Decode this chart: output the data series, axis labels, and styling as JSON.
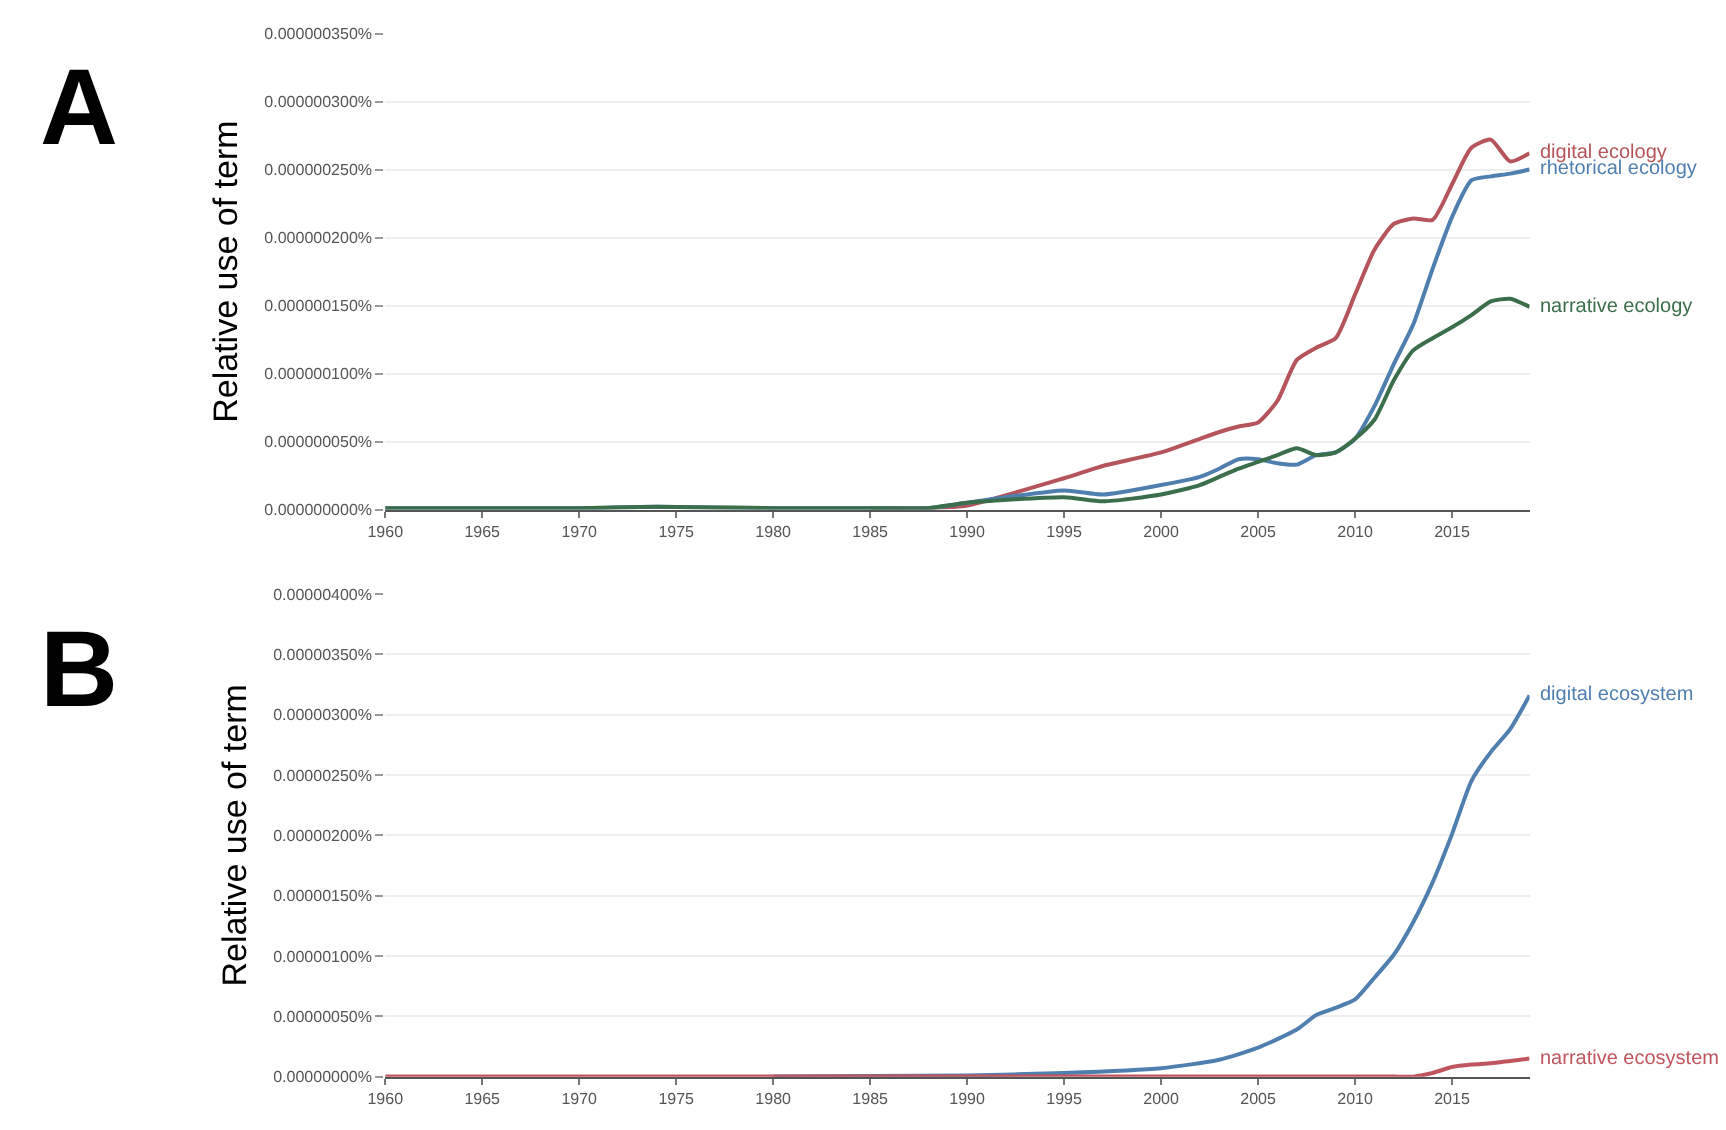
{
  "chart_data": [
    {
      "type": "line",
      "title": "A",
      "ylabel": "Relative use of term",
      "x": [
        1960,
        1965,
        1970,
        1974,
        1980,
        1985,
        1988,
        1990,
        1995,
        1997,
        2000,
        2002,
        2003,
        2004,
        2005,
        2006,
        2007,
        2008,
        2009,
        2010,
        2011,
        2012,
        2013,
        2014,
        2015,
        2016,
        2017,
        2018,
        2019
      ],
      "series": [
        {
          "name": "digital ecology",
          "color": "#b5545a",
          "values": [
            null,
            null,
            null,
            null,
            null,
            1e-09,
            1e-09,
            3e-09,
            2.3e-08,
            3.2e-08,
            4.2e-08,
            5.2e-08,
            5.7e-08,
            6.1e-08,
            6.4e-08,
            8e-08,
            1.1e-07,
            1.19e-07,
            1.26e-07,
            1.58e-07,
            1.91e-07,
            2.1e-07,
            2.14e-07,
            2.13e-07,
            2.39e-07,
            2.66e-07,
            2.72e-07,
            2.56e-07,
            2.62e-07
          ]
        },
        {
          "name": "rhetorical ecology",
          "color": "#4f7faf",
          "values": [
            1e-09,
            1e-09,
            1e-09,
            2e-09,
            1e-09,
            1e-09,
            1e-09,
            5e-09,
            1.4e-08,
            1.1e-08,
            1.8e-08,
            2.4e-08,
            3e-08,
            3.7e-08,
            3.7e-08,
            3.4e-08,
            3.3e-08,
            4e-08,
            4.2e-08,
            5.2e-08,
            7.6e-08,
            1.07e-07,
            1.36e-07,
            1.77e-07,
            2.15e-07,
            2.42e-07,
            2.45e-07,
            2.47e-07,
            2.5e-07
          ]
        },
        {
          "name": "narrative ecology",
          "color": "#3b6e4a",
          "values": [
            1e-09,
            1e-09,
            1e-09,
            2e-09,
            1e-09,
            1e-09,
            1e-09,
            5e-09,
            9e-09,
            6e-09,
            1.1e-08,
            1.8e-08,
            2.4e-08,
            3e-08,
            3.5e-08,
            4e-08,
            4.5e-08,
            4e-08,
            4.2e-08,
            5.2e-08,
            6.6e-08,
            9.5e-08,
            1.17e-07,
            1.26e-07,
            1.34e-07,
            1.43e-07,
            1.53e-07,
            1.55e-07,
            1.49e-07
          ]
        }
      ],
      "xlim": [
        1960,
        2019
      ],
      "xticks": [
        1960,
        1965,
        1970,
        1975,
        1980,
        1985,
        1990,
        1995,
        2000,
        2005,
        2010,
        2015
      ],
      "ylim": [
        0,
        3.5e-07
      ],
      "yticks": [
        {
          "value": 0,
          "label": "0.000000000%"
        },
        {
          "value": 5e-08,
          "label": "0.000000050%"
        },
        {
          "value": 1e-07,
          "label": "0.000000100%"
        },
        {
          "value": 1.5e-07,
          "label": "0.000000150%"
        },
        {
          "value": 2e-07,
          "label": "0.000000200%"
        },
        {
          "value": 2.5e-07,
          "label": "0.000000250%"
        },
        {
          "value": 3e-07,
          "label": "0.000000300%"
        },
        {
          "value": 3.5e-07,
          "label": "0.000000350%"
        }
      ],
      "grid": "y"
    },
    {
      "type": "line",
      "title": "B",
      "ylabel": "Relative use of term",
      "x": [
        1960,
        1970,
        1980,
        1990,
        1995,
        2000,
        2003,
        2005,
        2007,
        2008,
        2009,
        2010,
        2011,
        2012,
        2013,
        2014,
        2015,
        2016,
        2017,
        2018,
        2019
      ],
      "series": [
        {
          "name": "digital ecosystem",
          "color": "#4f7faf",
          "values": [
            null,
            null,
            0,
            1e-08,
            3e-08,
            7e-08,
            1.4e-07,
            2.4e-07,
            3.9e-07,
            5.1e-07,
            5.7e-07,
            6.4e-07,
            8.2e-07,
            1.01e-06,
            1.28e-06,
            1.61e-06,
            2.01e-06,
            2.45e-06,
            2.69e-06,
            2.88e-06,
            3.16e-06
          ]
        },
        {
          "name": "narrative ecosystem",
          "color": "#c0555e",
          "values": [
            0,
            0,
            0,
            0,
            0,
            0,
            0,
            0,
            0,
            0,
            0,
            0,
            0,
            0,
            0,
            3e-08,
            8e-08,
            1e-07,
            1.1e-07,
            1.3e-07,
            1.5e-07
          ]
        }
      ],
      "xlim": [
        1960,
        2019
      ],
      "xticks": [
        1960,
        1965,
        1970,
        1975,
        1980,
        1985,
        1990,
        1995,
        2000,
        2005,
        2010,
        2015
      ],
      "ylim": [
        0,
        4e-06
      ],
      "yticks": [
        {
          "value": 0,
          "label": "0.00000000%"
        },
        {
          "value": 5e-07,
          "label": "0.00000050%"
        },
        {
          "value": 1e-06,
          "label": "0.00000100%"
        },
        {
          "value": 1.5e-06,
          "label": "0.00000150%"
        },
        {
          "value": 2e-06,
          "label": "0.00000200%"
        },
        {
          "value": 2.5e-06,
          "label": "0.00000250%"
        },
        {
          "value": 3e-06,
          "label": "0.00000300%"
        },
        {
          "value": 3.5e-06,
          "label": "0.00000350%"
        },
        {
          "value": 4e-06,
          "label": "0.00000400%"
        }
      ],
      "grid": "y"
    }
  ]
}
